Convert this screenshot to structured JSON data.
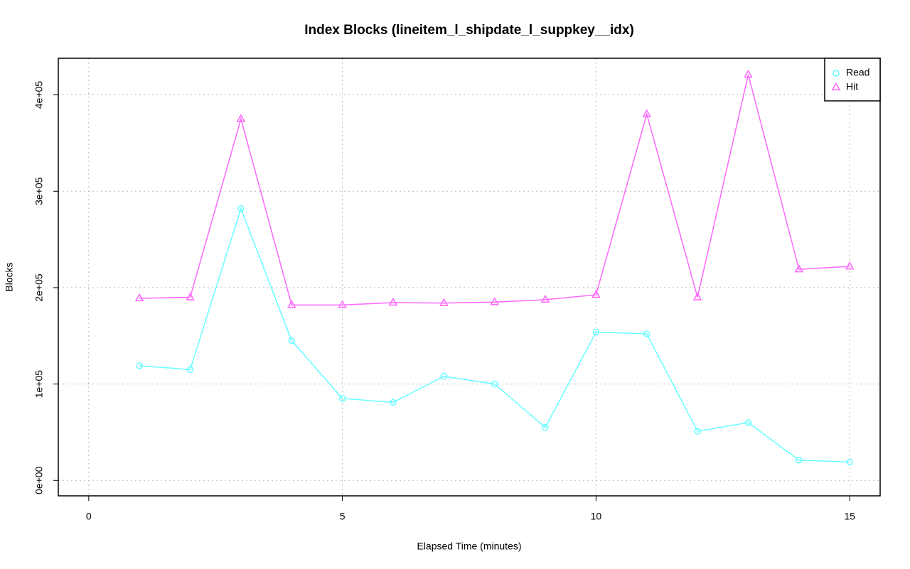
{
  "chart_data": {
    "type": "line",
    "title": "Index Blocks (lineitem_l_shipdate_l_suppkey__idx)",
    "x_label": "Elapsed Time (minutes)",
    "y_label": "Blocks",
    "x": [
      1,
      2,
      3,
      4,
      5,
      6,
      7,
      8,
      9,
      10,
      11,
      12,
      13,
      14,
      15
    ],
    "series": [
      {
        "name": "Read",
        "color": "#66ffff",
        "marker": "circle",
        "values": [
          119000,
          115000,
          282000,
          145000,
          85000,
          81000,
          108000,
          100000,
          55000,
          154000,
          152000,
          51000,
          60000,
          21000,
          19000
        ]
      },
      {
        "name": "Hit",
        "color": "#ff66ff",
        "marker": "triangle",
        "values": [
          189000,
          190000,
          375000,
          182000,
          182000,
          184500,
          184000,
          185000,
          187500,
          192600,
          380000,
          190000,
          421000,
          219000,
          222000
        ]
      }
    ],
    "xlim": [
      -0.6,
      15.6
    ],
    "ylim": [
      -16000,
      438000
    ],
    "xticks": [
      0,
      5,
      10,
      15
    ],
    "yticks": [
      {
        "value": 0,
        "label": "0e+00"
      },
      {
        "value": 100000,
        "label": "1e+05"
      },
      {
        "value": 200000,
        "label": "2e+05"
      },
      {
        "value": 300000,
        "label": "3e+05"
      },
      {
        "value": 400000,
        "label": "4e+05"
      }
    ],
    "grid": true,
    "legend": "top-right"
  }
}
